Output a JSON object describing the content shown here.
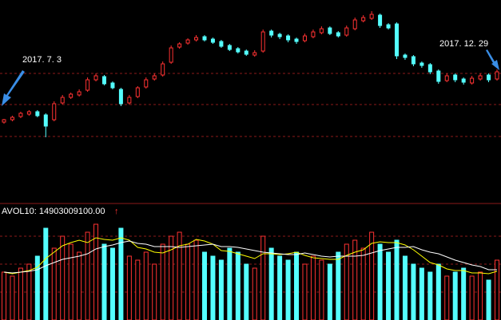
{
  "chart_data": [
    {
      "type": "candlestick",
      "up_color": "#ff3232",
      "down_color": "#54ffff",
      "ylim": [
        0,
        250
      ],
      "open": [
        97,
        100,
        104,
        107,
        110,
        106,
        100,
        121,
        128,
        131,
        137,
        150,
        154,
        146,
        138,
        121,
        129,
        141,
        151,
        156,
        172,
        191,
        196,
        200,
        204,
        201,
        198,
        193,
        189,
        186,
        181,
        186,
        211,
        207,
        205,
        201,
        199,
        204,
        209,
        215,
        209,
        206,
        214,
        224,
        227,
        231,
        219,
        220,
        181,
        179,
        171,
        169,
        161,
        149,
        156,
        151,
        146,
        151,
        156,
        151
      ],
      "high": [
        101,
        105,
        110,
        112,
        112,
        108,
        123,
        131,
        134,
        138,
        153,
        158,
        156,
        148,
        140,
        131,
        142,
        153,
        158,
        173,
        193,
        197,
        202,
        206,
        206,
        203,
        200,
        195,
        191,
        188,
        187,
        213,
        213,
        209,
        207,
        203,
        208,
        213,
        217,
        217,
        211,
        218,
        228,
        231,
        236,
        233,
        221,
        222,
        183,
        181,
        173,
        171,
        163,
        158,
        158,
        153,
        155,
        158,
        158,
        163
      ],
      "low": [
        95,
        98,
        102,
        105,
        103,
        78,
        98,
        119,
        126,
        129,
        135,
        148,
        143,
        138,
        117,
        119,
        127,
        139,
        149,
        154,
        170,
        189,
        194,
        198,
        198,
        195,
        190,
        186,
        183,
        180,
        179,
        184,
        203,
        201,
        197,
        195,
        197,
        202,
        207,
        206,
        203,
        204,
        212,
        222,
        225,
        215,
        213,
        176,
        175,
        167,
        165,
        157,
        145,
        147,
        147,
        144,
        144,
        149,
        147,
        149
      ],
      "close": [
        100,
        103,
        108,
        110,
        105,
        92,
        120,
        128,
        132,
        135,
        150,
        155,
        145,
        140,
        120,
        128,
        140,
        150,
        155,
        170,
        190,
        195,
        200,
        203,
        200,
        197,
        192,
        188,
        185,
        182,
        184,
        210,
        206,
        204,
        200,
        198,
        205,
        210,
        214,
        208,
        205,
        215,
        225,
        228,
        232,
        218,
        215,
        180,
        178,
        170,
        168,
        160,
        148,
        155,
        150,
        147,
        152,
        155,
        150,
        160
      ],
      "annotations": [
        "2017. 7. 3",
        "2017. 12. 29"
      ]
    },
    {
      "type": "bar",
      "title": "AVOL10: 14903009100.00",
      "trend": "↑",
      "ylim": [
        0,
        130
      ],
      "values": [
        60,
        55,
        65,
        70,
        80,
        115,
        90,
        105,
        95,
        85,
        110,
        120,
        95,
        90,
        115,
        80,
        75,
        85,
        70,
        95,
        105,
        110,
        95,
        100,
        85,
        80,
        75,
        90,
        85,
        70,
        65,
        105,
        90,
        80,
        75,
        85,
        70,
        80,
        75,
        70,
        85,
        95,
        100,
        90,
        110,
        95,
        85,
        100,
        80,
        70,
        65,
        60,
        70,
        55,
        60,
        65,
        55,
        60,
        50,
        75
      ],
      "lines": [
        {
          "color": "#ffff00",
          "values": [
            60,
            58,
            60,
            62,
            66,
            77,
            85,
            93,
            97,
            100,
            97,
            103,
            101,
            100,
            103,
            100,
            91,
            89,
            85,
            84,
            88,
            93,
            95,
            101,
            99,
            95,
            87,
            86,
            83,
            80,
            77,
            83,
            83,
            82,
            83,
            85,
            81,
            78,
            77,
            76,
            76,
            81,
            85,
            88,
            96,
            98,
            97,
            97,
            94,
            88,
            80,
            72,
            69,
            64,
            62,
            62,
            59,
            59,
            58,
            61
          ]
        },
        {
          "color": "#ffffff",
          "values": [
            60,
            59,
            60,
            61,
            63,
            68,
            72,
            76,
            78,
            80,
            83,
            89,
            92,
            94,
            97,
            99,
            96,
            95,
            92,
            92,
            92,
            91,
            92,
            93,
            94,
            95,
            92,
            92,
            91,
            89,
            87,
            85,
            84,
            83,
            82,
            82,
            84,
            82,
            80,
            79,
            80,
            80,
            80,
            81,
            84,
            87,
            89,
            91,
            91,
            92,
            88,
            85,
            83,
            79,
            75,
            72,
            69,
            67,
            63,
            63
          ]
        }
      ]
    }
  ]
}
